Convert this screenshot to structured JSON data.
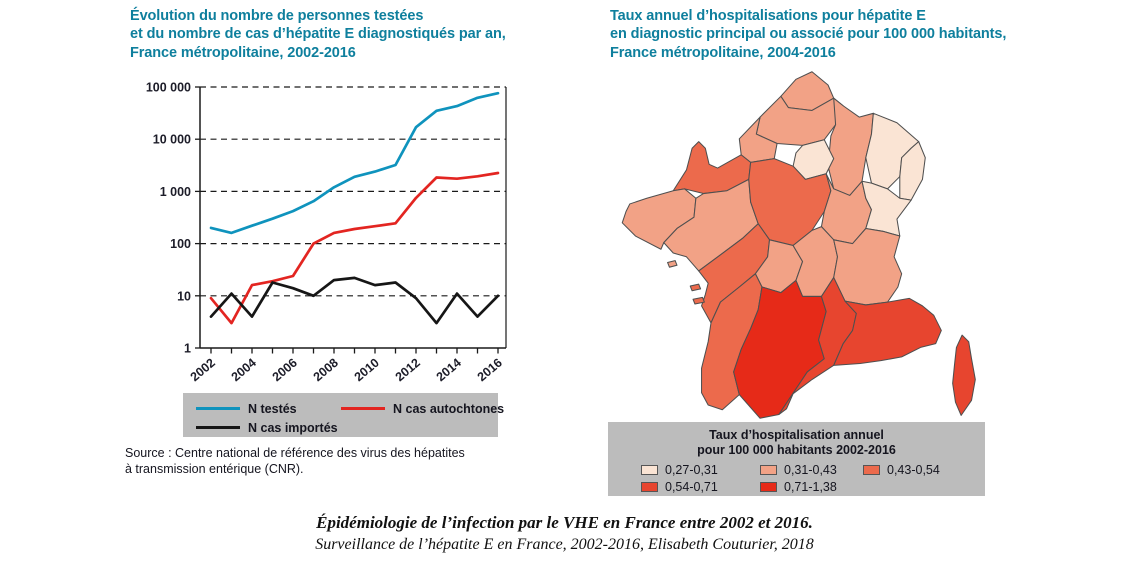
{
  "left_panel": {
    "title": "Évolution du nombre de personnes testées\net du nombre de cas d’hépatite E diagnostiqués par an,\nFrance métropolitaine, 2002-2016",
    "source": "Source : Centre national de référence des virus des hépatites\nà transmission entérique (CNR)."
  },
  "right_panel": {
    "title": "Taux annuel d’hospitalisations pour hépatite E\nen diagnostic principal ou associé pour 100 000 habitants,\nFrance métropolitaine, 2004-2016"
  },
  "chart_data": {
    "type": "line",
    "yscale": "log",
    "ylim": [
      1,
      100000
    ],
    "grid": "dashed-horizontal",
    "legend_position": "below",
    "x": [
      2002,
      2003,
      2004,
      2005,
      2006,
      2007,
      2008,
      2009,
      2010,
      2011,
      2012,
      2013,
      2014,
      2015,
      2016
    ],
    "xtick_labels": [
      "2002",
      "2004",
      "2006",
      "2008",
      "2010",
      "2012",
      "2014",
      "2016"
    ],
    "ytick_labels": [
      "100 000",
      "10 000",
      "1 000",
      "100",
      "10",
      "1"
    ],
    "series": [
      {
        "name": "N testés",
        "color": "#0f93bd",
        "values": [
          200,
          160,
          220,
          300,
          420,
          650,
          1200,
          1900,
          2400,
          3200,
          17000,
          35000,
          43000,
          62000,
          76000
        ]
      },
      {
        "name": "N cas autochtones",
        "color": "#e32521",
        "values": [
          9,
          3,
          16,
          19,
          24,
          100,
          160,
          190,
          215,
          245,
          750,
          1850,
          1750,
          1950,
          2250
        ]
      },
      {
        "name": "N cas importés",
        "color": "#161616",
        "values": [
          4,
          11,
          4,
          18,
          14,
          10,
          20,
          22,
          16,
          18,
          9,
          3,
          11,
          4,
          10
        ]
      }
    ]
  },
  "map": {
    "legend": {
      "title": "Taux d’hospitalisation annuel\npour 100 000 habitants 2002-2016",
      "items": [
        {
          "label": "0,27-0,31",
          "color": "#fae4d4"
        },
        {
          "label": "0,31-0,43",
          "color": "#f2a286"
        },
        {
          "label": "0,43-0,54",
          "color": "#ec6a4c"
        },
        {
          "label": "0,54-0,71",
          "color": "#e7452f"
        },
        {
          "label": "0,71-1,38",
          "color": "#e62a18"
        }
      ]
    },
    "regions": [
      {
        "id": "nord-pas-de-calais",
        "name": "Nord-Pas-de-Calais",
        "class": 1
      },
      {
        "id": "picardie",
        "name": "Picardie",
        "class": 1
      },
      {
        "id": "haute-normandie",
        "name": "Haute-Normandie",
        "class": 1
      },
      {
        "id": "basse-normandie",
        "name": "Basse-Normandie",
        "class": 2
      },
      {
        "id": "ile-de-france",
        "name": "Île-de-France",
        "class": 0
      },
      {
        "id": "champagne-ardenne",
        "name": "Champagne-Ardenne",
        "class": 1
      },
      {
        "id": "lorraine",
        "name": "Lorraine",
        "class": 0
      },
      {
        "id": "alsace",
        "name": "Alsace",
        "class": 0
      },
      {
        "id": "bretagne",
        "name": "Bretagne",
        "class": 1
      },
      {
        "id": "pays-de-la-loire",
        "name": "Pays de la Loire",
        "class": 1
      },
      {
        "id": "centre",
        "name": "Centre",
        "class": 2
      },
      {
        "id": "bourgogne",
        "name": "Bourgogne",
        "class": 1
      },
      {
        "id": "franche-comte",
        "name": "Franche-Comté",
        "class": 0
      },
      {
        "id": "poitou-charentes",
        "name": "Poitou-Charentes",
        "class": 2
      },
      {
        "id": "limousin",
        "name": "Limousin",
        "class": 1
      },
      {
        "id": "auvergne",
        "name": "Auvergne",
        "class": 1
      },
      {
        "id": "rhone-alpes",
        "name": "Rhône-Alpes",
        "class": 1
      },
      {
        "id": "aquitaine",
        "name": "Aquitaine",
        "class": 2
      },
      {
        "id": "midi-pyrenees",
        "name": "Midi-Pyrénées",
        "class": 4
      },
      {
        "id": "languedoc-roussillon",
        "name": "Languedoc-Roussillon",
        "class": 3
      },
      {
        "id": "paca",
        "name": "Provence-Alpes-Côte d’Azur",
        "class": 3
      },
      {
        "id": "corse",
        "name": "Corse",
        "class": 3
      }
    ]
  },
  "caption": {
    "line1": "Épidémiologie de l’infection par le VHE en France entre 2002 et 2016.",
    "line2": "Surveillance de l’hépatite E en France, 2002-2016, Elisabeth Couturier, 2018"
  }
}
